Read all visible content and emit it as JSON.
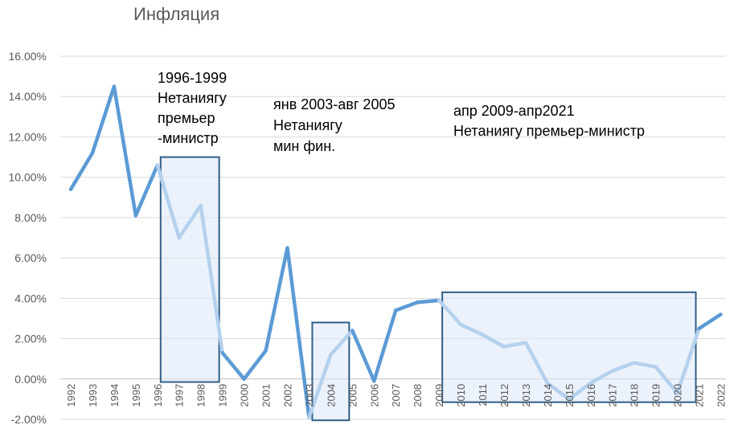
{
  "chart_data": {
    "type": "line",
    "title": "Инфляция",
    "xlabel": "",
    "ylabel": "",
    "ylim": [
      -2,
      16
    ],
    "ytick_labels": [
      "16.00%",
      "14.00%",
      "12.00%",
      "10.00%",
      "8.00%",
      "6.00%",
      "4.00%",
      "2.00%",
      "0.00%",
      "-2.00%"
    ],
    "yticks": [
      16,
      14,
      12,
      10,
      8,
      6,
      4,
      2,
      0,
      -2
    ],
    "grid": true,
    "legend": "none",
    "categories": [
      "1992",
      "1993",
      "1994",
      "1995",
      "1996",
      "1997",
      "1998",
      "1999",
      "2000",
      "2001",
      "2002",
      "2003",
      "2004",
      "2005",
      "2006",
      "2007",
      "2008",
      "2009",
      "2010",
      "2011",
      "2012",
      "2013",
      "2014",
      "2015",
      "2016",
      "2017",
      "2018",
      "2019",
      "2020",
      "2021",
      "2022"
    ],
    "series": [
      {
        "values": [
          9.4,
          11.2,
          14.5,
          8.1,
          10.6,
          7.0,
          8.6,
          1.3,
          0.0,
          1.4,
          6.5,
          -1.9,
          1.2,
          2.4,
          -0.1,
          3.4,
          3.8,
          3.9,
          2.7,
          2.2,
          1.6,
          1.8,
          -0.2,
          -1.0,
          -0.2,
          0.4,
          0.8,
          0.6,
          -0.7,
          2.5,
          3.2
        ]
      }
    ],
    "colors": {
      "line": "#5b9bd5",
      "line_highlight": "#b4d1ee",
      "box_fill": "#dbe8f7",
      "box_stroke": "#2f5e86"
    },
    "annotations": [
      {
        "lines": [
          "1996-1999",
          "Нетаниягу",
          "премьер",
          "-министр"
        ]
      },
      {
        "lines": [
          "янв 2003-авг 2005",
          "Нетаниягу",
          "мин фин."
        ]
      },
      {
        "lines": [
          "апр 2009-апр2021",
          "Нетаниягу премьер-министр"
        ]
      }
    ],
    "highlight_periods": [
      {
        "from": 1996,
        "to": 1999
      },
      {
        "from": 2003,
        "to": 2005
      },
      {
        "from": 2009,
        "to": 2021
      }
    ]
  }
}
